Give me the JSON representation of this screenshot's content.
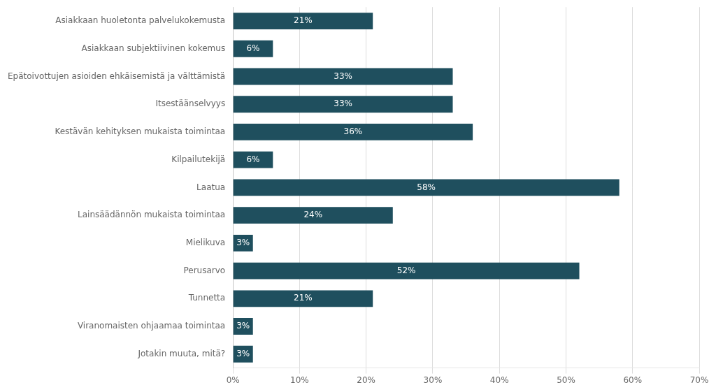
{
  "chart_data": {
    "type": "bar",
    "orientation": "horizontal",
    "categories": [
      "Jotakin muuta, mitä?",
      "Viranomaisten ohjaamaa toimintaa",
      "Tunnetta",
      "Perusarvo",
      "Mielikuva",
      "Lainsäädännön mukaista toimintaa",
      "Laatua",
      "Kilpailutekijä",
      "Kestävän kehityksen mukaista toimintaa",
      "Itsestäänselvyys",
      "Epätoivottujen asioiden ehkäisemistä ja välttämistä",
      "Asiakkaan subjektiivinen kokemus",
      "Asiakkaan huoletonta palvelukokemusta"
    ],
    "values": [
      3,
      3,
      21,
      52,
      3,
      24,
      58,
      6,
      36,
      33,
      33,
      6,
      21
    ],
    "value_labels": [
      "3%",
      "3%",
      "21%",
      "52%",
      "3%",
      "24%",
      "58%",
      "6%",
      "36%",
      "33%",
      "33%",
      "6%",
      "21%"
    ],
    "color": "#1f4f5e",
    "xlim": [
      0,
      70
    ],
    "xticks": [
      {
        "value": 0,
        "label": "0%"
      },
      {
        "value": 10,
        "label": "10%"
      },
      {
        "value": 20,
        "label": "20%"
      },
      {
        "value": 30,
        "label": "30%"
      },
      {
        "value": 40,
        "label": "40%"
      },
      {
        "value": 50,
        "label": "50%"
      },
      {
        "value": 60,
        "label": "60%"
      },
      {
        "value": 70,
        "label": "70%"
      }
    ],
    "grid": true,
    "data_labels": true
  }
}
